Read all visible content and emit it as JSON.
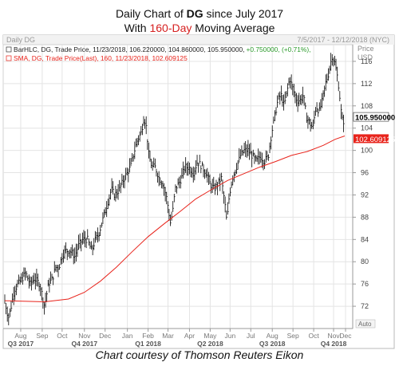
{
  "header": {
    "line1_prefix": "Daily Chart of ",
    "line1_ticker": "DG",
    "line1_suffix": " since July 2017",
    "line2_prefix": "With ",
    "line2_highlight": "160-Day",
    "line2_suffix": " Moving Average"
  },
  "caption": "Chart courtesy of Thomson Reuters Eikon",
  "chart_data": {
    "type": "ohlc",
    "panel_title": "Daily DG",
    "date_range": "7/5/2017 - 12/12/2018 (NYC)",
    "legend": {
      "ohlc_text": "BarHLC, DG, Trade Price, 11/23/2018, 106.220000, 104.860000, 105.950000,",
      "ohlc_change": "+0.750000, (+0.71%),",
      "sma_text": "SMA, DG, Trade Price(Last),  160,  11/23/2018, 102.609125"
    },
    "y_axis": {
      "title": "Price",
      "unit": "USD",
      "ticks": [
        72,
        76,
        80,
        84,
        88,
        92,
        96,
        100,
        104,
        108,
        112,
        116
      ],
      "range": [
        68,
        119
      ]
    },
    "auto_label": "Auto",
    "months": [
      "Aug",
      "Sep",
      "Oct",
      "Nov",
      "Dec",
      "Jan",
      "Feb",
      "Mar",
      "Apr",
      "May",
      "Jun",
      "Jul",
      "Aug",
      "Sep",
      "Oct",
      "Nov",
      "Dec"
    ],
    "quarters": [
      "Q3 2017",
      "Q4 2017",
      "Q1 2018",
      "Q2 2018",
      "Q3 2018",
      "Q4 2018"
    ],
    "last_price_label": "105.950000",
    "sma_label": "102.609125",
    "colors": {
      "price": "#000000",
      "sma": "#e8231b",
      "last_price_bg": "#ffffff",
      "sma_bg": "#e8231b",
      "grid": "#e4e4e4"
    },
    "price_series": [
      {
        "t": 0,
        "close": 73
      },
      {
        "t": 3,
        "close": 71
      },
      {
        "t": 5,
        "close": 70
      },
      {
        "t": 8,
        "close": 72
      },
      {
        "t": 12,
        "close": 75
      },
      {
        "t": 17,
        "close": 76
      },
      {
        "t": 22,
        "close": 77
      },
      {
        "t": 26,
        "close": 78
      },
      {
        "t": 32,
        "close": 76
      },
      {
        "t": 37,
        "close": 77
      },
      {
        "t": 44,
        "close": 76
      },
      {
        "t": 50,
        "close": 72
      },
      {
        "t": 55,
        "close": 76
      },
      {
        "t": 60,
        "close": 77
      },
      {
        "t": 64,
        "close": 79
      },
      {
        "t": 68,
        "close": 79
      },
      {
        "t": 72,
        "close": 81
      },
      {
        "t": 76,
        "close": 82
      },
      {
        "t": 82,
        "close": 82
      },
      {
        "t": 88,
        "close": 81
      },
      {
        "t": 93,
        "close": 83
      },
      {
        "t": 98,
        "close": 84
      },
      {
        "t": 104,
        "close": 84
      },
      {
        "t": 109,
        "close": 82
      },
      {
        "t": 114,
        "close": 84
      },
      {
        "t": 118,
        "close": 85
      },
      {
        "t": 122,
        "close": 87
      },
      {
        "t": 126,
        "close": 89
      },
      {
        "t": 130,
        "close": 91
      },
      {
        "t": 134,
        "close": 93
      },
      {
        "t": 138,
        "close": 92
      },
      {
        "t": 144,
        "close": 93
      },
      {
        "t": 150,
        "close": 95
      },
      {
        "t": 154,
        "close": 96
      },
      {
        "t": 158,
        "close": 97
      },
      {
        "t": 163,
        "close": 100
      },
      {
        "t": 167,
        "close": 102
      },
      {
        "t": 171,
        "close": 103
      },
      {
        "t": 175,
        "close": 106
      },
      {
        "t": 178,
        "close": 104
      },
      {
        "t": 181,
        "close": 99
      },
      {
        "t": 185,
        "close": 97
      },
      {
        "t": 189,
        "close": 97
      },
      {
        "t": 194,
        "close": 95
      },
      {
        "t": 199,
        "close": 94
      },
      {
        "t": 204,
        "close": 91
      },
      {
        "t": 208,
        "close": 87
      },
      {
        "t": 211,
        "close": 89
      },
      {
        "t": 214,
        "close": 93
      },
      {
        "t": 218,
        "close": 94
      },
      {
        "t": 222,
        "close": 95
      },
      {
        "t": 226,
        "close": 97
      },
      {
        "t": 231,
        "close": 97
      },
      {
        "t": 237,
        "close": 96
      },
      {
        "t": 242,
        "close": 98
      },
      {
        "t": 248,
        "close": 97
      },
      {
        "t": 253,
        "close": 96
      },
      {
        "t": 258,
        "close": 94
      },
      {
        "t": 263,
        "close": 93
      },
      {
        "t": 268,
        "close": 94
      },
      {
        "t": 272,
        "close": 95
      },
      {
        "t": 276,
        "close": 91
      },
      {
        "t": 279,
        "close": 87
      },
      {
        "t": 282,
        "close": 92
      },
      {
        "t": 286,
        "close": 95
      },
      {
        "t": 291,
        "close": 97
      },
      {
        "t": 296,
        "close": 99
      },
      {
        "t": 301,
        "close": 100
      },
      {
        "t": 306,
        "close": 100
      },
      {
        "t": 311,
        "close": 99
      },
      {
        "t": 316,
        "close": 98
      },
      {
        "t": 321,
        "close": 99
      },
      {
        "t": 326,
        "close": 98
      },
      {
        "t": 331,
        "close": 99
      },
      {
        "t": 335,
        "close": 103
      },
      {
        "t": 339,
        "close": 106
      },
      {
        "t": 343,
        "close": 109
      },
      {
        "t": 347,
        "close": 110
      },
      {
        "t": 351,
        "close": 108
      },
      {
        "t": 355,
        "close": 111
      },
      {
        "t": 358,
        "close": 113
      },
      {
        "t": 362,
        "close": 111
      },
      {
        "t": 367,
        "close": 109
      },
      {
        "t": 371,
        "close": 109
      },
      {
        "t": 375,
        "close": 110
      },
      {
        "t": 379,
        "close": 106
      },
      {
        "t": 383,
        "close": 105
      },
      {
        "t": 387,
        "close": 104
      },
      {
        "t": 391,
        "close": 108
      },
      {
        "t": 395,
        "close": 107
      },
      {
        "t": 399,
        "close": 109
      },
      {
        "t": 403,
        "close": 112
      },
      {
        "t": 407,
        "close": 114
      },
      {
        "t": 411,
        "close": 117
      },
      {
        "t": 414,
        "close": 116
      },
      {
        "t": 417,
        "close": 114
      },
      {
        "t": 420,
        "close": 111
      },
      {
        "t": 423,
        "close": 106
      },
      {
        "t": 425,
        "close": 105
      },
      {
        "t": 427,
        "close": 105.95
      }
    ],
    "sma_series": [
      {
        "t": 0,
        "v": 73
      },
      {
        "t": 50,
        "v": 72.8
      },
      {
        "t": 80,
        "v": 73.3
      },
      {
        "t": 100,
        "v": 74.5
      },
      {
        "t": 120,
        "v": 76.5
      },
      {
        "t": 140,
        "v": 79
      },
      {
        "t": 160,
        "v": 81.8
      },
      {
        "t": 180,
        "v": 84.5
      },
      {
        "t": 200,
        "v": 86.8
      },
      {
        "t": 220,
        "v": 89
      },
      {
        "t": 240,
        "v": 91.3
      },
      {
        "t": 260,
        "v": 93
      },
      {
        "t": 280,
        "v": 94.6
      },
      {
        "t": 300,
        "v": 95.8
      },
      {
        "t": 320,
        "v": 97
      },
      {
        "t": 340,
        "v": 98
      },
      {
        "t": 360,
        "v": 99.1
      },
      {
        "t": 380,
        "v": 99.8
      },
      {
        "t": 400,
        "v": 100.9
      },
      {
        "t": 415,
        "v": 102
      },
      {
        "t": 427,
        "v": 102.6
      }
    ]
  }
}
